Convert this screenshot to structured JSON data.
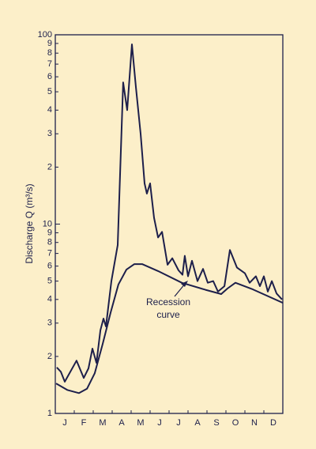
{
  "chart_data": {
    "type": "line",
    "ylabel": "Discharge Q (m³/s)",
    "log_y": true,
    "xlim": [
      0,
      12
    ],
    "xticks": [
      {
        "value": 0.5,
        "label": "J"
      },
      {
        "value": 1.5,
        "label": "F"
      },
      {
        "value": 2.5,
        "label": "M"
      },
      {
        "value": 3.5,
        "label": "A"
      },
      {
        "value": 4.5,
        "label": "M"
      },
      {
        "value": 5.5,
        "label": "J"
      },
      {
        "value": 6.5,
        "label": "J"
      },
      {
        "value": 7.5,
        "label": "A"
      },
      {
        "value": 8.5,
        "label": "S"
      },
      {
        "value": 9.5,
        "label": "O"
      },
      {
        "value": 10.5,
        "label": "N"
      },
      {
        "value": 11.5,
        "label": "D"
      }
    ],
    "ylim": [
      1,
      100
    ],
    "yticks": [
      1,
      2,
      3,
      4,
      5,
      6,
      7,
      8,
      9,
      10,
      {
        "value": 20,
        "label": "2"
      },
      {
        "value": 30,
        "label": "3"
      },
      {
        "value": 40,
        "label": "4"
      },
      {
        "value": 50,
        "label": "5"
      },
      {
        "value": 60,
        "label": "6"
      },
      {
        "value": 70,
        "label": "7"
      },
      {
        "value": 80,
        "label": "8"
      },
      {
        "value": 90,
        "label": "9"
      },
      100
    ],
    "series": [
      {
        "color": "#1d1f4b",
        "x": [
          0.08,
          0.29,
          0.5,
          1.12,
          1.5,
          1.75,
          1.96,
          2.17,
          2.38,
          2.54,
          2.67,
          2.96,
          3.29,
          3.58,
          3.79,
          4.04,
          4.25,
          4.5,
          4.71,
          4.83,
          5.0,
          5.21,
          5.42,
          5.63,
          5.92,
          6.17,
          6.5,
          6.71,
          6.83,
          7.0,
          7.21,
          7.5,
          7.79,
          8.04,
          8.33,
          8.58,
          8.92,
          9.21,
          9.58,
          10.0,
          10.25,
          10.58,
          10.79,
          11.0,
          11.21,
          11.42,
          11.67,
          11.96
        ],
        "values": [
          1.75,
          1.66,
          1.47,
          1.9,
          1.54,
          1.73,
          2.2,
          1.85,
          2.75,
          3.17,
          2.88,
          5.0,
          7.76,
          56,
          40,
          89,
          53,
          30,
          16.4,
          14.5,
          16.4,
          10.8,
          8.5,
          9.1,
          6.1,
          6.6,
          5.7,
          5.4,
          6.8,
          5.3,
          6.4,
          5.0,
          5.8,
          4.9,
          5.0,
          4.4,
          4.7,
          7.3,
          5.9,
          5.5,
          4.9,
          5.3,
          4.7,
          5.3,
          4.4,
          5.0,
          4.3,
          4.0
        ]
      },
      {
        "color": "#1d1f4b",
        "x": [
          0.04,
          0.63,
          1.25,
          1.67,
          2.08,
          2.5,
          2.92,
          3.33,
          3.75,
          4.17,
          4.58,
          5.42,
          6.67,
          7.92,
          8.75,
          9.08,
          9.5,
          10.42,
          12.0
        ],
        "values": [
          1.44,
          1.33,
          1.28,
          1.35,
          1.63,
          2.33,
          3.42,
          4.8,
          5.75,
          6.15,
          6.15,
          5.65,
          4.9,
          4.5,
          4.27,
          4.57,
          4.9,
          4.52,
          3.84
        ]
      }
    ],
    "annotation": [
      "Recession",
      "curve"
    ]
  }
}
